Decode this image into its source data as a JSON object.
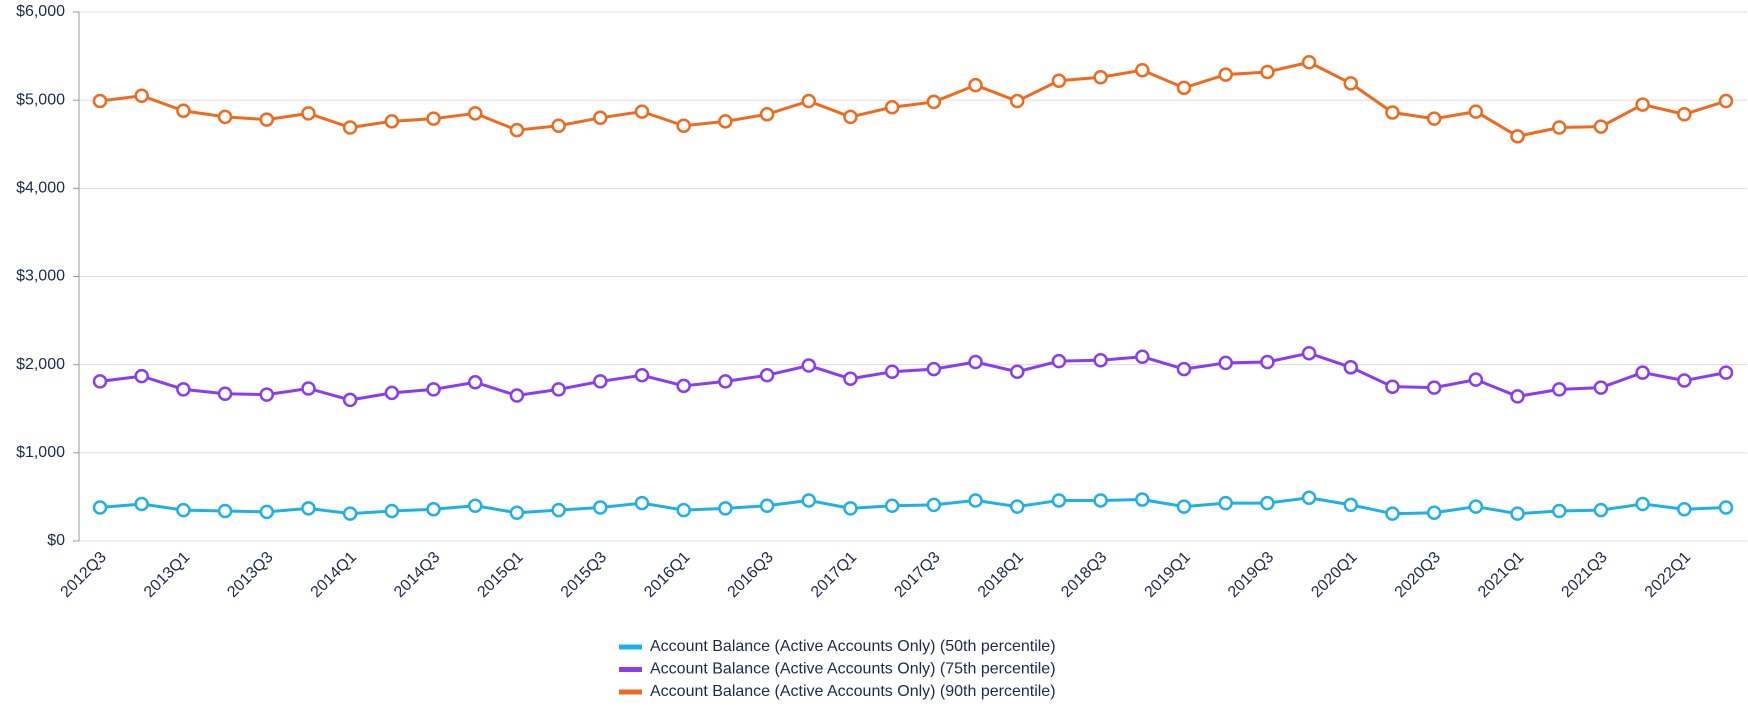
{
  "chart_data": {
    "type": "line",
    "categories": [
      "2012Q3",
      null,
      "2013Q1",
      null,
      "2013Q3",
      null,
      "2014Q1",
      null,
      "2014Q3",
      null,
      "2015Q1",
      null,
      "2015Q3",
      null,
      "2016Q1",
      null,
      "2016Q3",
      null,
      "2017Q1",
      null,
      "2017Q3",
      null,
      "2018Q1",
      null,
      "2018Q3",
      null,
      "2019Q1",
      null,
      "2019Q3",
      null,
      "2020Q1",
      null,
      "2020Q3",
      null,
      "2021Q1",
      null,
      "2021Q3",
      null,
      "2022Q1",
      null
    ],
    "series": [
      {
        "name": "Account Balance (Active Accounts Only) (50th percentile)",
        "color": "#1fb1e6",
        "values": [
          380,
          420,
          350,
          340,
          330,
          370,
          310,
          340,
          360,
          400,
          320,
          350,
          380,
          430,
          350,
          370,
          400,
          460,
          370,
          400,
          410,
          460,
          390,
          460,
          460,
          470,
          390,
          430,
          430,
          490,
          410,
          310,
          320,
          390,
          310,
          340,
          350,
          420,
          360,
          380
        ]
      },
      {
        "name": "Account Balance (Active Accounts Only) (75th percentile)",
        "color": "#8b3cf0",
        "values": [
          1810,
          1870,
          1720,
          1670,
          1660,
          1730,
          1600,
          1680,
          1720,
          1800,
          1650,
          1720,
          1810,
          1880,
          1760,
          1810,
          1880,
          1990,
          1840,
          1920,
          1950,
          2030,
          1920,
          2040,
          2050,
          2090,
          1950,
          2020,
          2030,
          2130,
          1970,
          1750,
          1740,
          1830,
          1640,
          1720,
          1740,
          1910,
          1820,
          1910
        ]
      },
      {
        "name": "Account Balance (Active Accounts Only) (90th percentile)",
        "color": "#ee6a1e",
        "values": [
          4990,
          5050,
          4880,
          4810,
          4780,
          4850,
          4690,
          4760,
          4790,
          4850,
          4660,
          4710,
          4800,
          4870,
          4710,
          4760,
          4840,
          4990,
          4810,
          4920,
          4980,
          5170,
          4990,
          5220,
          5260,
          5340,
          5140,
          5290,
          5320,
          5430,
          5190,
          4860,
          4790,
          4870,
          4590,
          4690,
          4700,
          4950,
          4840,
          4990
        ]
      }
    ],
    "ylim": [
      0,
      6000
    ],
    "yticks": [
      {
        "value": 0,
        "label": "$0"
      },
      {
        "value": 1000,
        "label": "$1,000"
      },
      {
        "value": 2000,
        "label": "$2,000"
      },
      {
        "value": 3000,
        "label": "$3,000"
      },
      {
        "value": 4000,
        "label": "$4,000"
      },
      {
        "value": 5000,
        "label": "$5,000"
      },
      {
        "value": 6000,
        "label": "$6,000"
      }
    ],
    "grid": true,
    "legend": "bottom"
  }
}
